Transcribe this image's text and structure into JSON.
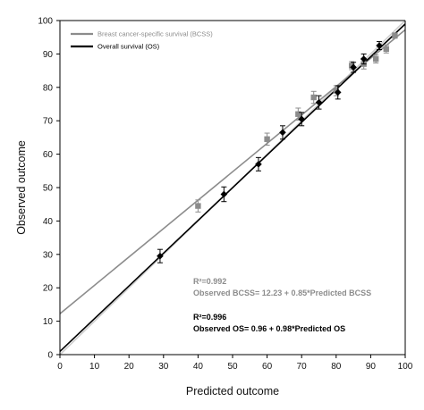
{
  "chart_data": {
    "type": "scatter",
    "title": "",
    "xlabel": "Predicted outcome",
    "ylabel": "Observed outcome",
    "xlim": [
      0,
      100
    ],
    "ylim": [
      0,
      100
    ],
    "xticks": [
      0,
      10,
      20,
      30,
      40,
      50,
      60,
      70,
      80,
      90,
      100
    ],
    "yticks": [
      0,
      10,
      20,
      30,
      40,
      50,
      60,
      70,
      80,
      90,
      100
    ],
    "grid": false,
    "legend": "top-left",
    "series": [
      {
        "name": "Breast cancer-specific survival (BCSS)",
        "color": "#8c8c8c",
        "marker": "square",
        "fit": {
          "intercept": 12.23,
          "slope": 0.85
        },
        "points": [
          {
            "x": 40,
            "y": 44.5,
            "err": 1.8
          },
          {
            "x": 60,
            "y": 64.5,
            "err": 1.8
          },
          {
            "x": 69,
            "y": 72,
            "err": 1.8
          },
          {
            "x": 73.5,
            "y": 77,
            "err": 1.8
          },
          {
            "x": 80,
            "y": 79,
            "err": 1.5
          },
          {
            "x": 84.5,
            "y": 86.5,
            "err": 1.2
          },
          {
            "x": 88,
            "y": 87,
            "err": 1.5
          },
          {
            "x": 91.5,
            "y": 88.5,
            "err": 1.2
          },
          {
            "x": 94.5,
            "y": 91.5,
            "err": 1.2
          },
          {
            "x": 97,
            "y": 95.5,
            "err": 0.8
          }
        ]
      },
      {
        "name": "Overall survival (OS)",
        "color": "#000000",
        "marker": "diamond",
        "fit": {
          "intercept": 0.96,
          "slope": 0.98
        },
        "points": [
          {
            "x": 29,
            "y": 29.5,
            "err": 2
          },
          {
            "x": 47.5,
            "y": 48,
            "err": 2.2
          },
          {
            "x": 57.5,
            "y": 57,
            "err": 2
          },
          {
            "x": 64.5,
            "y": 66.5,
            "err": 2
          },
          {
            "x": 70,
            "y": 70.5,
            "err": 2
          },
          {
            "x": 75,
            "y": 75.5,
            "err": 2
          },
          {
            "x": 80.5,
            "y": 78.5,
            "err": 2
          },
          {
            "x": 85,
            "y": 86,
            "err": 1.5
          },
          {
            "x": 88,
            "y": 88.5,
            "err": 1.5
          },
          {
            "x": 92.5,
            "y": 92.5,
            "err": 1.2
          }
        ]
      }
    ],
    "reference_line": {
      "type": "identity",
      "color": "#cfcfcf"
    },
    "annotations": {
      "bcss": {
        "r2": "R²=0.992",
        "equation": "Observed BCSS= 12.23 + 0.85*Predicted BCSS"
      },
      "os": {
        "r2": "R²=0.996",
        "equation": "Observed OS= 0.96 + 0.98*Predicted OS"
      }
    }
  }
}
